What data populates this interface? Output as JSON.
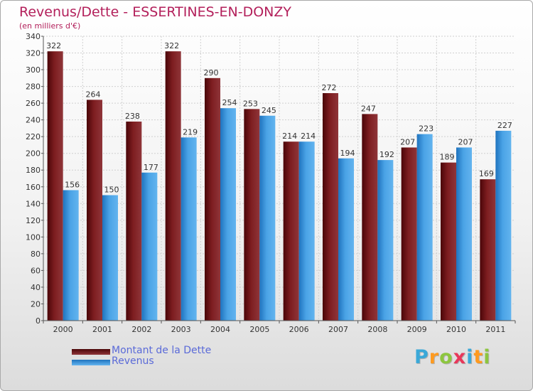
{
  "title": "Revenus/Dette - ESSERTINES-EN-DONZY",
  "subtitle": "(en milliers d'€)",
  "logo": {
    "text": "Proxiti",
    "letter_colors": [
      "#3aa8d8",
      "#ff9a1f",
      "#8dc63f",
      "#e8375a",
      "#3aa8d8",
      "#ff9a1f",
      "#8dc63f"
    ]
  },
  "chart_data": {
    "type": "bar",
    "categories": [
      "2000",
      "2001",
      "2002",
      "2003",
      "2004",
      "2005",
      "2006",
      "2007",
      "2008",
      "2009",
      "2010",
      "2011"
    ],
    "series": [
      {
        "name": "Montant de la Dette",
        "values": [
          322,
          264,
          238,
          322,
          290,
          253,
          214,
          272,
          247,
          207,
          189,
          169
        ],
        "color": "#7a1a1c"
      },
      {
        "name": "Revenus",
        "values": [
          156,
          150,
          177,
          219,
          254,
          245,
          214,
          194,
          192,
          223,
          207,
          227
        ],
        "color": "#4aa3e6"
      }
    ],
    "ylim": [
      0,
      340
    ],
    "yticks": [
      0,
      20,
      40,
      60,
      80,
      100,
      120,
      140,
      160,
      180,
      200,
      220,
      240,
      260,
      280,
      300,
      320,
      340
    ],
    "grid": true,
    "legend_position": "bottom-left"
  }
}
